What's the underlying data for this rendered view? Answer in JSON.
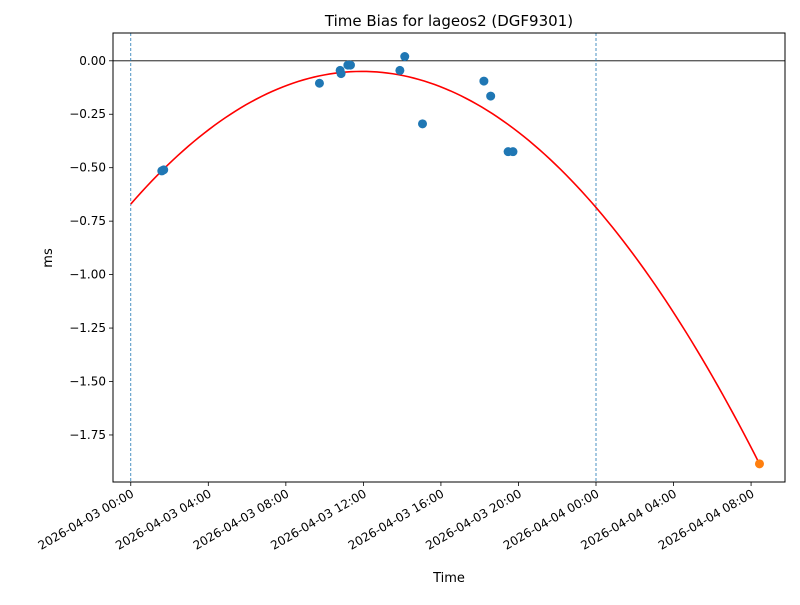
{
  "chart_data": {
    "type": "scatter",
    "title": "Time Bias for lageos2 (DGF9301)",
    "xlabel": "Time",
    "ylabel": "ms",
    "x_tick_labels": [
      "2026-04-03 00:00",
      "2026-04-03 04:00",
      "2026-04-03 08:00",
      "2026-04-03 12:00",
      "2026-04-03 16:00",
      "2026-04-03 20:00",
      "2026-04-04 00:00",
      "2026-04-04 04:00",
      "2026-04-04 08:00"
    ],
    "y_tick_labels": [
      "0.00",
      "−0.25",
      "−0.50",
      "−0.75",
      "−1.00",
      "−1.25",
      "−1.50",
      "−1.75"
    ],
    "y_ticks": [
      0,
      -0.25,
      -0.5,
      -0.75,
      -1.0,
      -1.25,
      -1.5,
      -1.75
    ],
    "xlim": [
      "2026-04-02 23:05",
      "2026-04-04 09:45"
    ],
    "ylim": [
      -1.97,
      0.13
    ],
    "grid": false,
    "reference_lines": {
      "horizontal_y": 0,
      "vertical_dashed_x": [
        "2026-04-03 00:00",
        "2026-04-04 00:00"
      ]
    },
    "series": [
      {
        "kind": "scatter",
        "color": "#1f77b4",
        "points": [
          {
            "x": "2026-04-03 01:36",
            "y": -0.515
          },
          {
            "x": "2026-04-03 01:42",
            "y": -0.51
          },
          {
            "x": "2026-04-03 09:44",
            "y": -0.105
          },
          {
            "x": "2026-04-03 10:48",
            "y": -0.045
          },
          {
            "x": "2026-04-03 10:51",
            "y": -0.06
          },
          {
            "x": "2026-04-03 11:12",
            "y": -0.02
          },
          {
            "x": "2026-04-03 11:20",
            "y": -0.02
          },
          {
            "x": "2026-04-03 13:53",
            "y": -0.045
          },
          {
            "x": "2026-04-03 14:08",
            "y": 0.02
          },
          {
            "x": "2026-04-03 15:03",
            "y": -0.295
          },
          {
            "x": "2026-04-03 18:13",
            "y": -0.095
          },
          {
            "x": "2026-04-03 18:34",
            "y": -0.165
          },
          {
            "x": "2026-04-03 19:28",
            "y": -0.425
          },
          {
            "x": "2026-04-03 19:43",
            "y": -0.425
          }
        ]
      },
      {
        "kind": "scatter",
        "color": "#ff7f0e",
        "points": [
          {
            "x": "2026-04-04 08:26",
            "y": -1.885
          }
        ]
      },
      {
        "kind": "line",
        "color": "#ff0000",
        "curve": "quadratic",
        "points": [
          {
            "x": "2026-04-03 00:00",
            "y": -0.67
          },
          {
            "x": "2026-04-03 12:13",
            "y": -0.05
          },
          {
            "x": "2026-04-04 08:26",
            "y": -1.885
          }
        ]
      }
    ]
  }
}
